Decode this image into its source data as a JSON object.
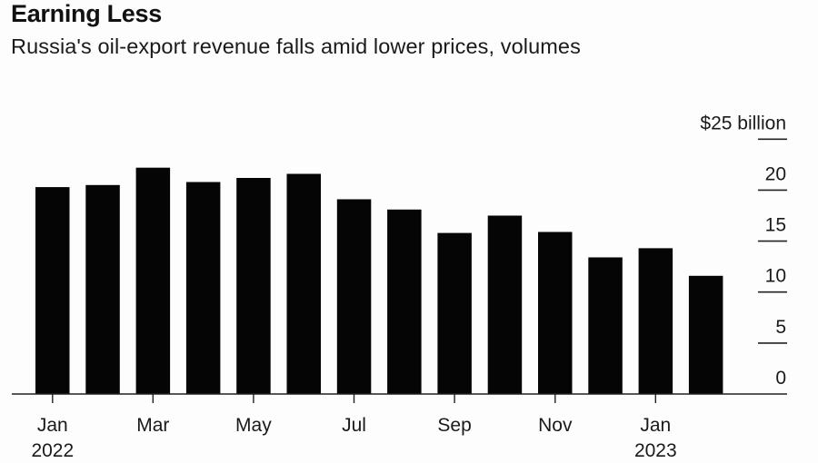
{
  "header": {
    "title": "Earning Less",
    "subtitle": "Russia's oil-export revenue falls amid lower prices, volumes"
  },
  "colors": {
    "bar": "#050505",
    "axis": "#222222",
    "text": "#1a1a1a",
    "background": "#fdfdfd"
  },
  "chart_data": {
    "type": "bar",
    "title": "Earning Less",
    "subtitle": "Russia's oil-export revenue falls amid lower prices, volumes",
    "xlabel": "",
    "ylabel": "$ billion",
    "unit_label": "$25 billion",
    "categories": [
      "Jan 2022",
      "Feb 2022",
      "Mar 2022",
      "Apr 2022",
      "May 2022",
      "Jun 2022",
      "Jul 2022",
      "Aug 2022",
      "Sep 2022",
      "Oct 2022",
      "Nov 2022",
      "Dec 2022",
      "Jan 2023",
      "Feb 2023"
    ],
    "values": [
      20.3,
      20.5,
      22.2,
      20.8,
      21.2,
      21.6,
      19.1,
      18.1,
      15.8,
      17.5,
      15.9,
      13.4,
      14.3,
      11.6
    ],
    "ylim": [
      0,
      25
    ],
    "y_ticks": [
      {
        "value": 25,
        "label": "$25 billion"
      },
      {
        "value": 20,
        "label": "20"
      },
      {
        "value": 15,
        "label": "15"
      },
      {
        "value": 10,
        "label": "10"
      },
      {
        "value": 5,
        "label": "5"
      },
      {
        "value": 0,
        "label": "0"
      }
    ],
    "x_ticks": [
      {
        "index": 0,
        "label": "Jan",
        "sublabel": "2022"
      },
      {
        "index": 2,
        "label": "Mar",
        "sublabel": ""
      },
      {
        "index": 4,
        "label": "May",
        "sublabel": ""
      },
      {
        "index": 6,
        "label": "Jul",
        "sublabel": ""
      },
      {
        "index": 8,
        "label": "Sep",
        "sublabel": ""
      },
      {
        "index": 10,
        "label": "Nov",
        "sublabel": ""
      },
      {
        "index": 12,
        "label": "Jan",
        "sublabel": "2023"
      }
    ],
    "y_axis_position": "right",
    "grid": false,
    "legend": "none"
  }
}
